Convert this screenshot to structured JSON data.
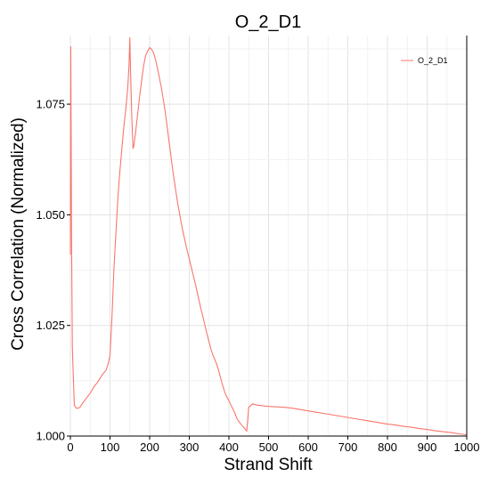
{
  "chart_data": {
    "type": "line",
    "title": "O_2_D1",
    "xlabel": "Strand Shift",
    "ylabel": "Cross Correlation (Normalized)",
    "xlim": [
      0,
      1000
    ],
    "ylim": [
      1.0,
      1.0905
    ],
    "x_ticks": [
      0,
      100,
      200,
      300,
      400,
      500,
      600,
      700,
      800,
      900,
      1000
    ],
    "x_tick_labels": [
      "0",
      "100",
      "200",
      "300",
      "400",
      "500",
      "600",
      "700",
      "800",
      "900",
      "1000"
    ],
    "y_ticks": [
      1.0,
      1.025,
      1.05,
      1.075
    ],
    "y_tick_labels": [
      "1.000",
      "1.025",
      "1.050",
      "1.075"
    ],
    "grid": true,
    "legend_position": "top-right",
    "series": [
      {
        "name": "O_2_D1",
        "color": "#F8766D",
        "x": [
          0,
          1,
          2,
          3,
          5,
          8,
          10,
          15,
          20,
          25,
          30,
          40,
          50,
          60,
          70,
          80,
          90,
          95,
          100,
          105,
          110,
          115,
          120,
          125,
          130,
          135,
          140,
          145,
          148,
          150,
          152,
          155,
          158,
          160,
          165,
          170,
          175,
          180,
          185,
          190,
          195,
          200,
          205,
          210,
          215,
          220,
          225,
          230,
          235,
          240,
          245,
          250,
          255,
          260,
          265,
          270,
          275,
          280,
          285,
          290,
          295,
          300,
          305,
          310,
          315,
          320,
          325,
          330,
          335,
          340,
          345,
          350,
          355,
          360,
          365,
          370,
          375,
          380,
          385,
          390,
          395,
          400,
          405,
          410,
          415,
          420,
          425,
          430,
          435,
          440,
          445,
          450,
          460,
          470,
          480,
          490,
          500,
          520,
          540,
          560,
          580,
          600,
          620,
          640,
          660,
          680,
          700,
          720,
          740,
          760,
          780,
          800,
          820,
          840,
          860,
          880,
          900,
          920,
          940,
          960,
          980,
          1000
        ],
        "y": [
          1.041,
          1.088,
          1.068,
          1.045,
          1.02,
          1.012,
          1.007,
          1.0063,
          1.0063,
          1.0066,
          1.0073,
          1.0085,
          1.0097,
          1.0112,
          1.0123,
          1.0138,
          1.0149,
          1.0162,
          1.0182,
          1.027,
          1.038,
          1.046,
          1.054,
          1.06,
          1.065,
          1.07,
          1.074,
          1.079,
          1.084,
          1.09,
          1.082,
          1.072,
          1.065,
          1.0655,
          1.069,
          1.073,
          1.077,
          1.0805,
          1.0838,
          1.086,
          1.087,
          1.0878,
          1.0874,
          1.0866,
          1.085,
          1.083,
          1.0808,
          1.0785,
          1.0758,
          1.0728,
          1.0693,
          1.0658,
          1.0623,
          1.059,
          1.056,
          1.053,
          1.0505,
          1.048,
          1.0458,
          1.0438,
          1.0418,
          1.04,
          1.0382,
          1.0363,
          1.0345,
          1.0325,
          1.0305,
          1.0285,
          1.0268,
          1.0248,
          1.023,
          1.0212,
          1.0195,
          1.0182,
          1.0172,
          1.016,
          1.0145,
          1.0128,
          1.0112,
          1.0098,
          1.0088,
          1.008,
          1.007,
          1.0061,
          1.0052,
          1.004,
          1.0033,
          1.0027,
          1.0022,
          1.0017,
          1.0011,
          1.0065,
          1.0073,
          1.007,
          1.0069,
          1.0068,
          1.0067,
          1.0066,
          1.0065,
          1.0063,
          1.006,
          1.0057,
          1.0054,
          1.0051,
          1.0048,
          1.0045,
          1.0042,
          1.0039,
          1.0036,
          1.0033,
          1.003,
          1.0027,
          1.0025,
          1.0022,
          1.002,
          1.0017,
          1.0015,
          1.0012,
          1.001,
          1.0008,
          1.0005,
          1.0003
        ]
      }
    ]
  }
}
